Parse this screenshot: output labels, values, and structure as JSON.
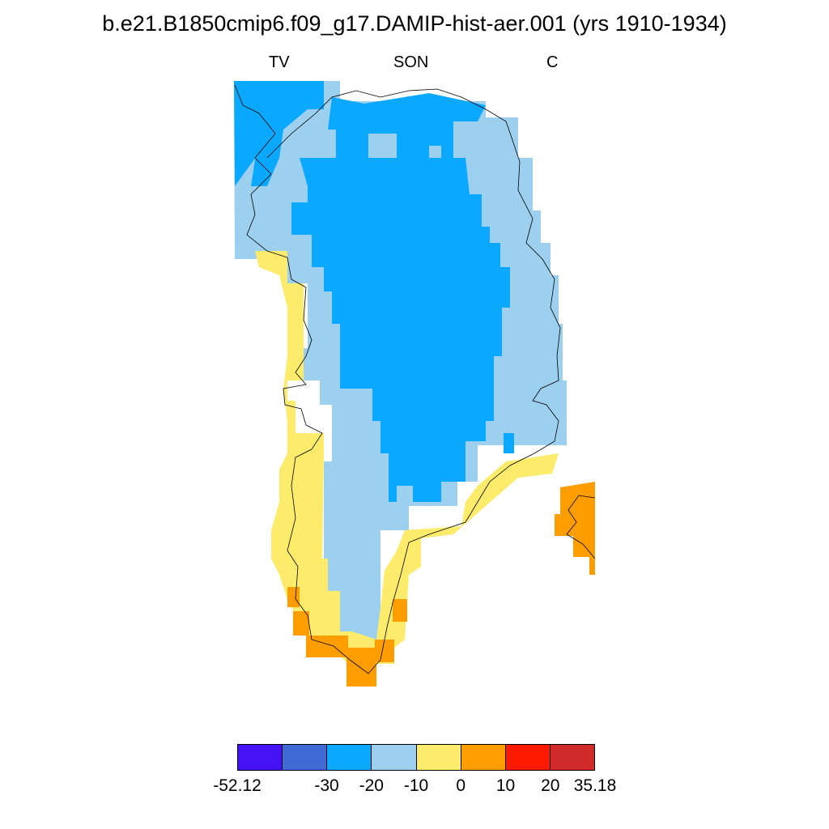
{
  "header": {
    "title": "b.e21.B1850cmip6.f09_g17.DAMIP-hist-aer.001 (yrs 1910-1934)",
    "left_label": "TV",
    "center_label": "SON",
    "right_label": "C"
  },
  "map": {
    "region": "Greenland",
    "legend_colors": {
      "-52.12 to -30": "#4512f5",
      "-30 to -20": "#3f6ad8",
      "-20 to -10": "#0aa9ff",
      "-10 to 0": "#9dcfef",
      "0 to 10": "#fdec6b",
      "10 to 20": "#fd9d00",
      "20 to 30": "#fd1a00",
      "30 to 35.18": "#d22b2b"
    }
  },
  "colorbar": {
    "colors": [
      "#4512f5",
      "#3f6ad8",
      "#0aa9ff",
      "#9dcfef",
      "#fdec6b",
      "#fd9d00",
      "#fd1a00",
      "#d22b2b"
    ],
    "tick_labels": [
      "-52.12",
      "-30",
      "-20",
      "-10",
      "0",
      "10",
      "20",
      "35.18"
    ]
  }
}
